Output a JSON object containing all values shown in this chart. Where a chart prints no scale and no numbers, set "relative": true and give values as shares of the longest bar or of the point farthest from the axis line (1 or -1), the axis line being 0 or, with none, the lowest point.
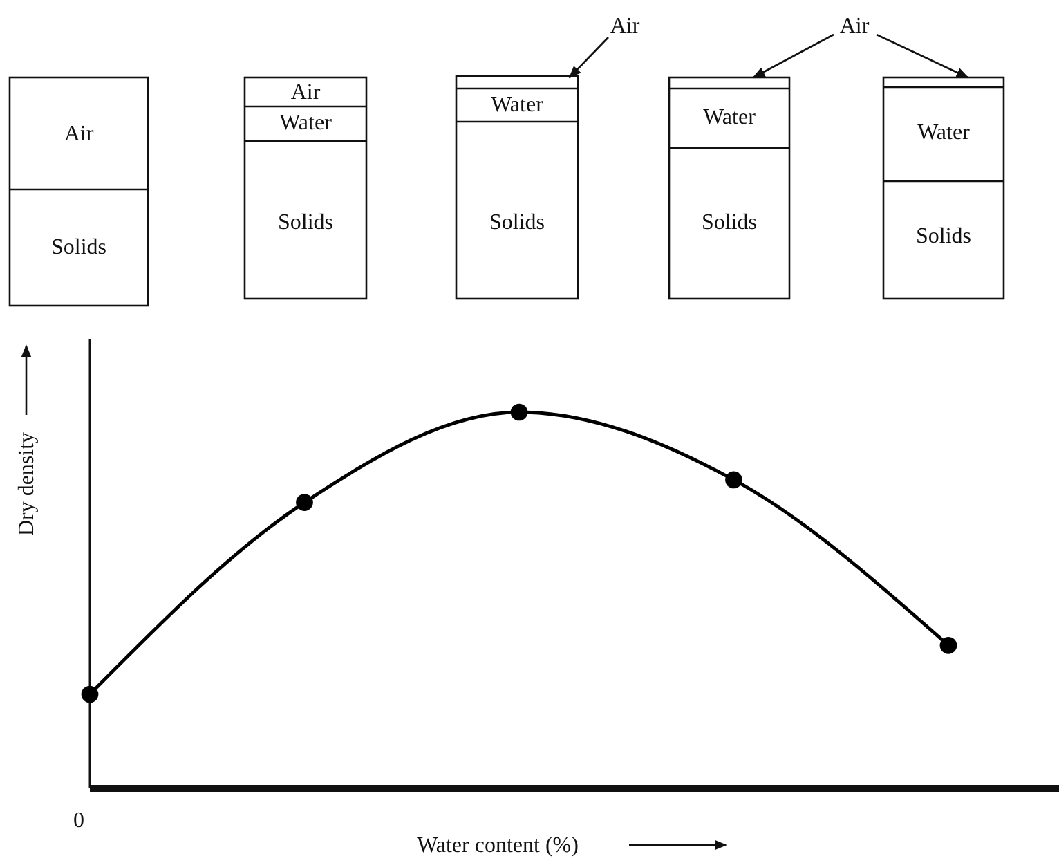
{
  "chart_data": {
    "type": "line",
    "relative": true,
    "xlabel": "Water content (%)",
    "ylabel": "Dry density",
    "categories": [
      null,
      null,
      null,
      null,
      null
    ],
    "values": [
      0.25,
      0.76,
      1,
      0.82,
      0.38
    ],
    "color": "#000000",
    "marker": "circle",
    "line_style": "solid",
    "annotations": [
      "Air",
      "Solids",
      "Air",
      "Water",
      "Solids",
      "Water",
      "Solids",
      "Water",
      "Solids",
      "Water",
      "Solids",
      "Air",
      "Air",
      "0"
    ]
  }
}
